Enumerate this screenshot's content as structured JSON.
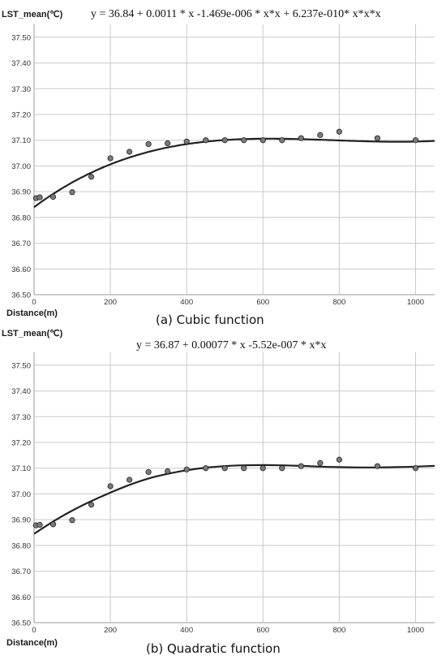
{
  "chart_data": [
    {
      "type": "scatter",
      "ylabel": "LST_mean(℃)",
      "xlabel": "Distance(m)",
      "equation": "y = 36.84 + 0.0011 * x  -1.469e-006 * x*x + 6.237e-010* x*x*x",
      "caption": "(a)  Cubic function",
      "fit": {
        "type": "cubic",
        "coefficients": [
          36.84,
          0.0011,
          -1.469e-06,
          6.237e-10
        ]
      },
      "xlim": [
        0,
        1050
      ],
      "ylim": [
        36.5,
        37.55
      ],
      "grid": true,
      "xticks": [
        0,
        200,
        400,
        600,
        800,
        1000
      ],
      "xtick_labels": [
        "0",
        "200",
        "400",
        "600",
        "800",
        "1000"
      ],
      "yticks": [
        36.5,
        36.6,
        36.7,
        36.8,
        36.9,
        37.0,
        37.1,
        37.2,
        37.3,
        37.4,
        37.5
      ],
      "ytick_labels": [
        "36.50",
        "36.60",
        "36.70",
        "36.80",
        "36.90",
        "37.00",
        "37.10",
        "37.20",
        "37.30",
        "37.40",
        "37.50"
      ],
      "series": [
        {
          "x": [
            5,
            15,
            50,
            100,
            150,
            200,
            250,
            300,
            350,
            400,
            450,
            500,
            550,
            600,
            650,
            700,
            750,
            800,
            900,
            1000
          ],
          "y": [
            36.875,
            36.878,
            36.88,
            36.898,
            36.958,
            37.03,
            37.055,
            37.085,
            37.088,
            37.095,
            37.1,
            37.1,
            37.1,
            37.1,
            37.1,
            37.108,
            37.12,
            37.133,
            37.108,
            37.1
          ]
        }
      ]
    },
    {
      "type": "scatter",
      "ylabel": "LST_mean(℃)",
      "xlabel": "Distance(m)",
      "equation": "y = 36.87 + 0.00077 * x  -5.52e-007 * x*x",
      "caption": "(b)  Quadratic function",
      "fit": {
        "type": "smooth",
        "x": [
          0,
          50,
          100,
          150,
          200,
          250,
          300,
          350,
          400,
          450,
          500,
          550,
          600,
          650,
          700,
          750,
          800,
          850,
          900,
          950,
          1000,
          1050
        ],
        "y": [
          36.845,
          36.893,
          36.935,
          36.972,
          37.005,
          37.035,
          37.06,
          37.078,
          37.092,
          37.102,
          37.108,
          37.111,
          37.112,
          37.111,
          37.109,
          37.106,
          37.104,
          37.103,
          37.103,
          37.104,
          37.106,
          37.109
        ]
      },
      "xlim": [
        0,
        1050
      ],
      "ylim": [
        36.5,
        37.55
      ],
      "grid": true,
      "xticks": [
        0,
        200,
        400,
        600,
        800,
        1000
      ],
      "xtick_labels": [
        "0",
        "200",
        "400",
        "600",
        "800",
        "1000"
      ],
      "yticks": [
        36.5,
        36.6,
        36.7,
        36.8,
        36.9,
        37.0,
        37.1,
        37.2,
        37.3,
        37.4,
        37.5
      ],
      "ytick_labels": [
        "36.50",
        "36.60",
        "36.70",
        "36.80",
        "36.90",
        "37.00",
        "37.10",
        "37.20",
        "37.30",
        "37.40",
        "37.50"
      ],
      "series": [
        {
          "x": [
            5,
            15,
            50,
            100,
            150,
            200,
            250,
            300,
            350,
            400,
            450,
            500,
            550,
            600,
            650,
            700,
            750,
            800,
            900,
            1000
          ],
          "y": [
            36.878,
            36.88,
            36.882,
            36.898,
            36.958,
            37.03,
            37.055,
            37.085,
            37.088,
            37.095,
            37.1,
            37.1,
            37.1,
            37.1,
            37.1,
            37.108,
            37.12,
            37.133,
            37.108,
            37.1
          ]
        }
      ]
    }
  ]
}
